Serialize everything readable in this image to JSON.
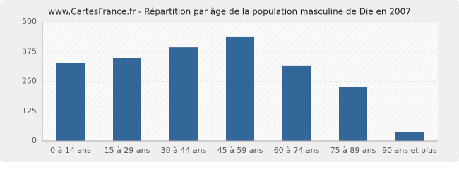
{
  "chart_data": {
    "type": "bar",
    "title": "www.CartesFrance.fr - Répartition par âge de la population masculine de Die en 2007",
    "categories": [
      "0 à 14 ans",
      "15 à 29 ans",
      "30 à 44 ans",
      "45 à 59 ans",
      "60 à 74 ans",
      "75 à 89 ans",
      "90 ans et plus"
    ],
    "values": [
      328,
      349,
      393,
      438,
      314,
      225,
      38
    ],
    "color": "#336699",
    "ylim": [
      0,
      500
    ],
    "yticks": [
      0,
      125,
      250,
      375,
      500
    ],
    "grid": true
  }
}
